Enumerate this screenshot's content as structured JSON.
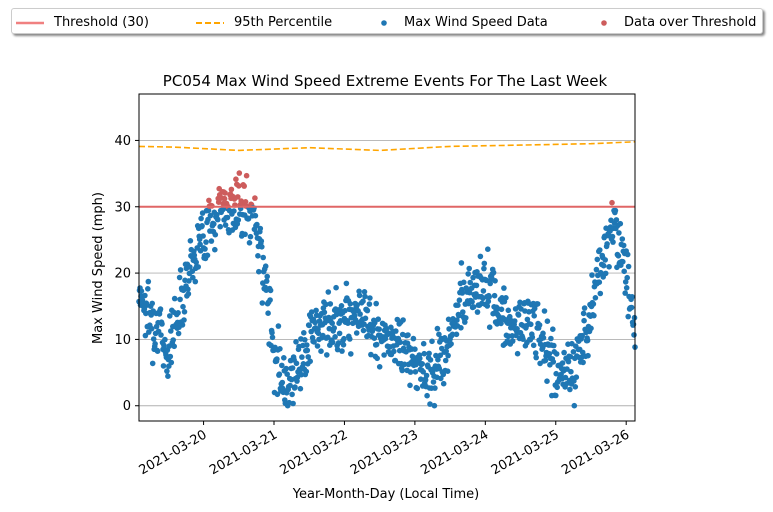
{
  "legend": {
    "threshold_label": "Threshold (30)",
    "percentile_label": "95th Percentile",
    "data_label": "Max Wind Speed Data",
    "over_label": "Data over Threshold"
  },
  "colors": {
    "data": "#1f77b4",
    "over": "#cd5c5c",
    "threshold": "#e06666",
    "percentile": "#ffa500",
    "grid": "#b0b0b0"
  },
  "chart_data": {
    "type": "scatter",
    "title": "PC054 Max Wind Speed Extreme Events For The Last Week",
    "xlabel": "Year-Month-Day (Local Time)",
    "ylabel": "Max Wind Speed (mph)",
    "x_ticks": [
      "2021-03-20",
      "2021-03-21",
      "2021-03-22",
      "2021-03-23",
      "2021-03-24",
      "2021-03-25",
      "2021-03-26"
    ],
    "y_ticks": [
      0,
      10,
      20,
      30,
      40
    ],
    "xlim": [
      "2021-03-19 02:00",
      "2021-03-26 03:00"
    ],
    "ylim": [
      -2.3,
      47
    ],
    "grid": "y",
    "threshold": 30,
    "percentile_95": {
      "x": [
        "2021-03-19 02:00",
        "2021-03-19 14:00",
        "2021-03-20 12:00",
        "2021-03-21 12:00",
        "2021-03-22 12:00",
        "2021-03-23 12:00",
        "2021-03-24 12:00",
        "2021-03-25 12:00",
        "2021-03-26 03:00"
      ],
      "y": [
        39.1,
        39.0,
        38.5,
        38.9,
        38.5,
        39.1,
        39.3,
        39.5,
        39.8
      ]
    },
    "profile": {
      "x": [
        "2021-03-19 02:00",
        "2021-03-19 04:00",
        "2021-03-19 08:00",
        "2021-03-19 12:00",
        "2021-03-19 16:00",
        "2021-03-19 20:00",
        "2021-03-20 00:00",
        "2021-03-20 06:00",
        "2021-03-20 12:00",
        "2021-03-20 18:00",
        "2021-03-21 00:00",
        "2021-03-21 04:00",
        "2021-03-21 08:00",
        "2021-03-21 14:00",
        "2021-03-21 20:00",
        "2021-03-22 04:00",
        "2021-03-22 12:00",
        "2021-03-22 20:00",
        "2021-03-23 00:00",
        "2021-03-23 06:00",
        "2021-03-23 12:00",
        "2021-03-23 18:00",
        "2021-03-24 00:00",
        "2021-03-24 06:00",
        "2021-03-24 12:00",
        "2021-03-24 18:00",
        "2021-03-25 00:00",
        "2021-03-25 06:00",
        "2021-03-25 12:00",
        "2021-03-25 16:00",
        "2021-03-25 20:00",
        "2021-03-26 00:00",
        "2021-03-26 03:00"
      ],
      "y": [
        18,
        15,
        12,
        8,
        16,
        22,
        26,
        30,
        30,
        28,
        9,
        3,
        6,
        12,
        12,
        15,
        10,
        9,
        6,
        5,
        10,
        17,
        19,
        13,
        12,
        12,
        5,
        5,
        15,
        22,
        28,
        20,
        12
      ]
    },
    "series": [
      {
        "name": "Max Wind Speed Data",
        "color": "#1f77b4"
      },
      {
        "name": "Data over Threshold",
        "color": "#cd5c5c"
      }
    ]
  }
}
